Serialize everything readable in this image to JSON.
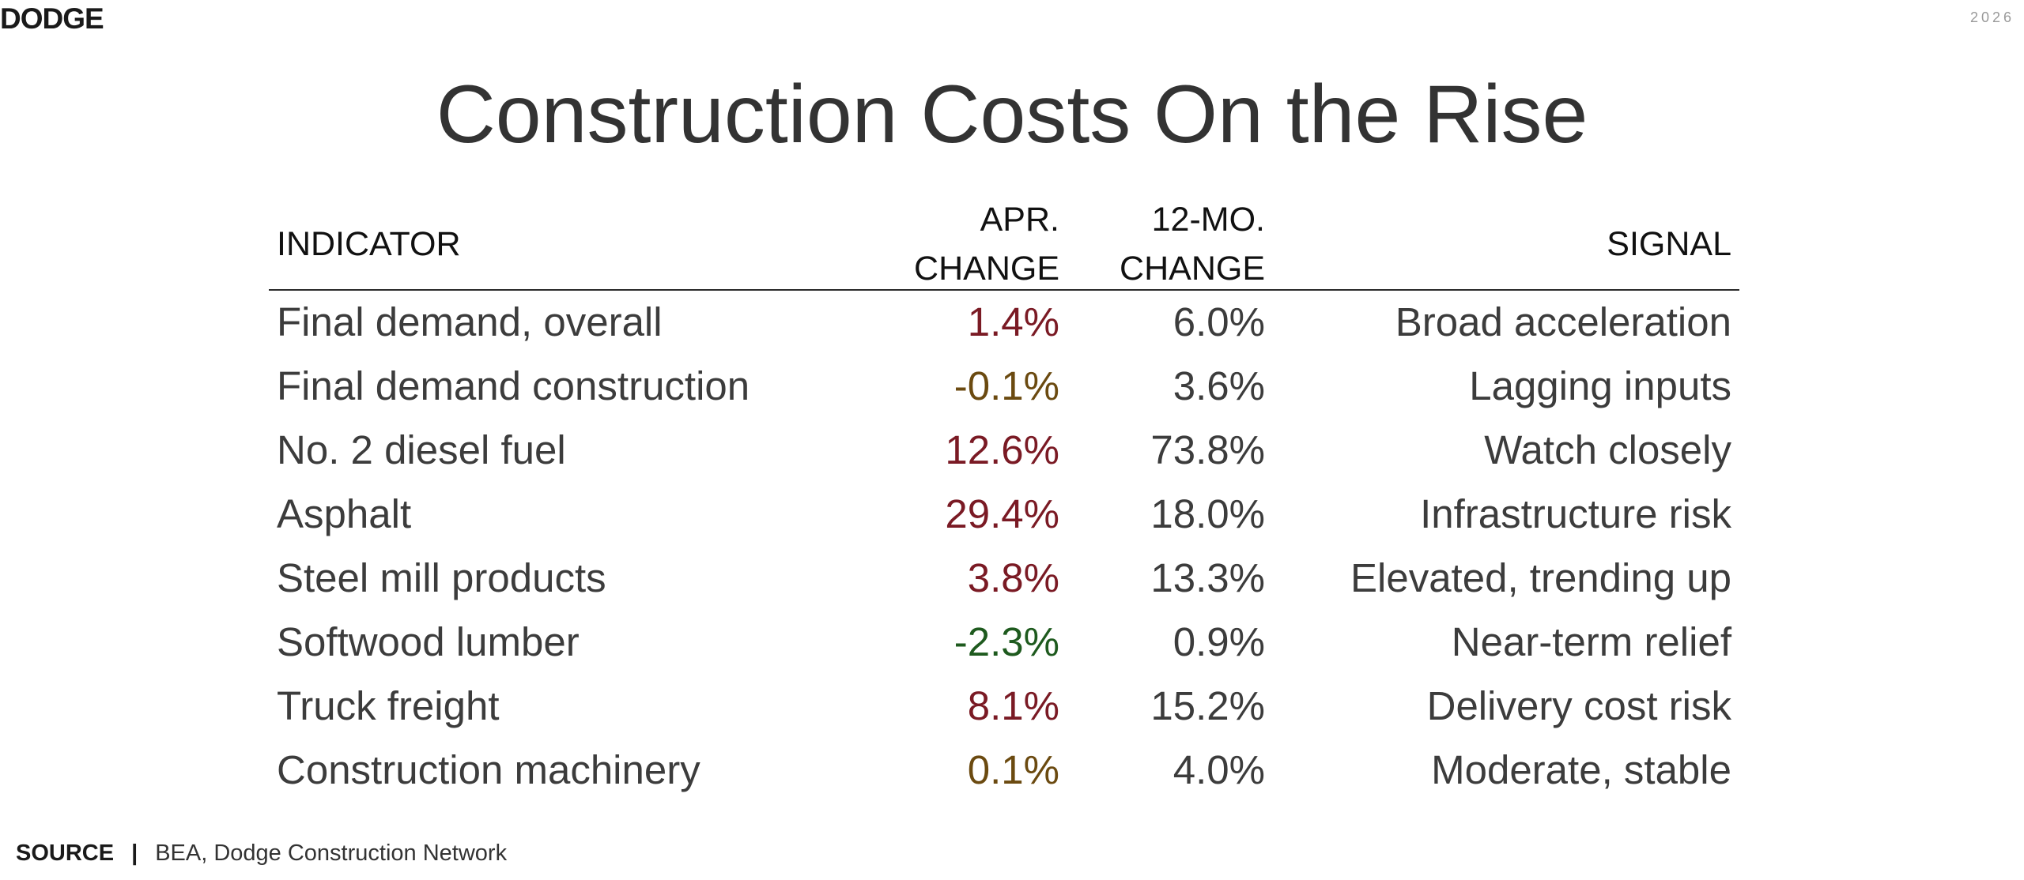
{
  "header": {
    "logo": "DODGE",
    "year": "2026"
  },
  "title": "Construction Costs On the Rise",
  "table": {
    "columns": {
      "indicator": "INDICATOR",
      "apr_line1": "APR.",
      "apr_line2": "CHANGE",
      "mo_line1": "12-MO.",
      "mo_line2": "CHANGE",
      "signal": "SIGNAL"
    },
    "rows": [
      {
        "indicator": "Final demand, overall",
        "apr": "1.4%",
        "apr_color": "#7a1a24",
        "mo": "6.0%",
        "signal": "Broad acceleration"
      },
      {
        "indicator": "Final demand construction",
        "apr": "-0.1%",
        "apr_color": "#6b4a10",
        "mo": "3.6%",
        "signal": "Lagging inputs"
      },
      {
        "indicator": "No. 2 diesel fuel",
        "apr": "12.6%",
        "apr_color": "#7a1a24",
        "mo": "73.8%",
        "signal": "Watch closely"
      },
      {
        "indicator": "Asphalt",
        "apr": "29.4%",
        "apr_color": "#7a1a24",
        "mo": "18.0%",
        "signal": "Infrastructure risk"
      },
      {
        "indicator": "Steel mill products",
        "apr": "3.8%",
        "apr_color": "#7a1a24",
        "mo": "13.3%",
        "signal": "Elevated, trending up"
      },
      {
        "indicator": "Softwood lumber",
        "apr": "-2.3%",
        "apr_color": "#1e5a1e",
        "mo": "0.9%",
        "signal": "Near-term relief"
      },
      {
        "indicator": "Truck freight",
        "apr": "8.1%",
        "apr_color": "#7a1a24",
        "mo": "15.2%",
        "signal": "Delivery cost risk"
      },
      {
        "indicator": "Construction machinery",
        "apr": "0.1%",
        "apr_color": "#6b4a10",
        "mo": "4.0%",
        "signal": "Moderate, stable"
      }
    ]
  },
  "source": {
    "label": "SOURCE",
    "separator": "|",
    "text": "BEA, Dodge Construction Network"
  }
}
